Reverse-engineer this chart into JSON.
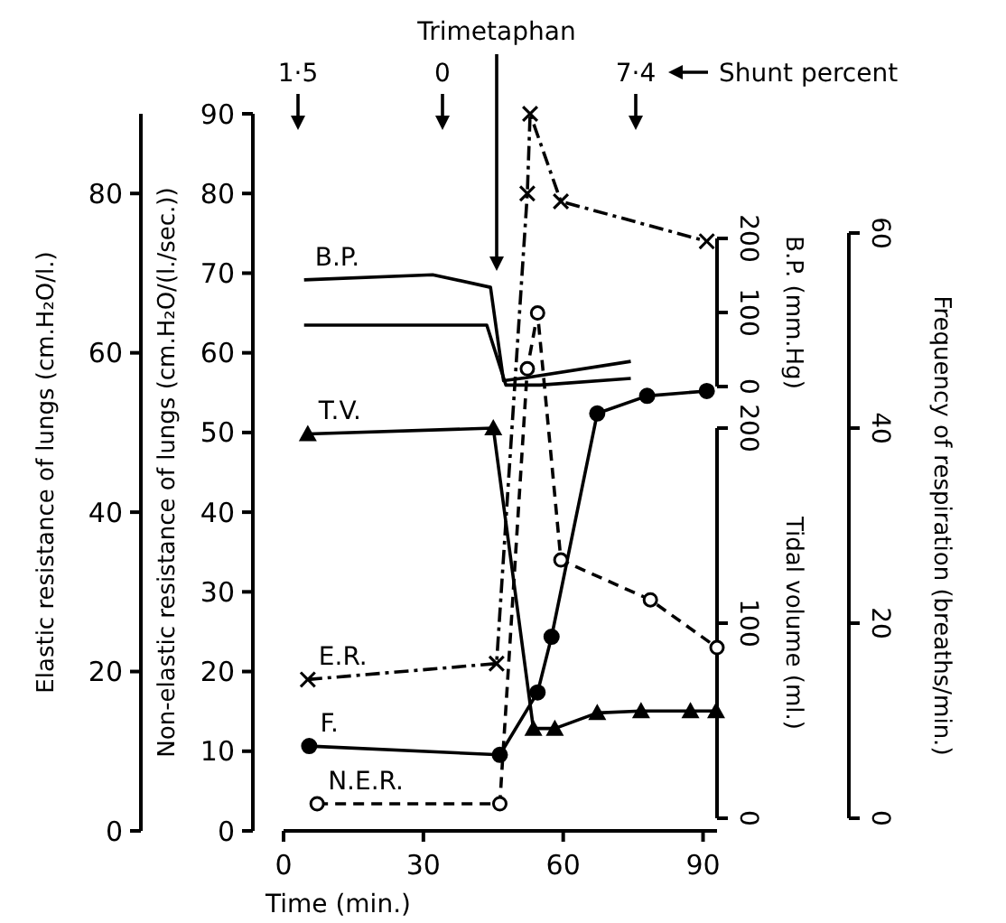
{
  "chart_data": [
    {
      "type": "line",
      "xlim": [
        0,
        93
      ],
      "tick_labels": "y",
      "ylabel": "Elastic resistance of lungs (cm.H₂O/l.)",
      "ylim": [
        0,
        90
      ],
      "yticks": [
        0,
        20,
        40,
        60,
        80
      ],
      "y2label": "Frequency of respiration (breaths/min.)",
      "y2lim": [
        0,
        60
      ],
      "y2ticks": [
        0,
        20,
        40,
        60
      ],
      "series": [
        {
          "name": "E.R.",
          "color": "#000000",
          "marker": "cross",
          "line_style": "dashdot",
          "x": [
            5.2,
            45.7,
            52.3,
            52.9,
            59.5,
            90.8
          ],
          "values": [
            19,
            21,
            80,
            90,
            79,
            74
          ]
        },
        {
          "name": "F.",
          "axis": "y2",
          "color": "#000000",
          "marker": "circle",
          "line_style": "solid",
          "x": [
            5.5,
            46.4,
            54.5,
            57.5,
            67.3,
            78,
            90.8
          ],
          "values": [
            7.4,
            6.5,
            12.9,
            18.6,
            41.5,
            43.3,
            43.8
          ]
        }
      ]
    },
    {
      "type": "line",
      "xlabel": "Time (min.)",
      "xlim": [
        0,
        93
      ],
      "xticks": [
        0,
        30,
        60,
        90
      ],
      "ylabel": "Non-elastic resistance of lungs (cm.H₂O/(l./sec.))",
      "ylim": [
        0,
        90
      ],
      "yticks": [
        0,
        10,
        20,
        30,
        40,
        50,
        60,
        70,
        80,
        90
      ],
      "y2label": "Tidal volume (ml.)",
      "y2lim": [
        0,
        200
      ],
      "y2ticks": [
        0,
        100,
        200
      ],
      "annotations": [
        "Trimetaphan",
        "1·5",
        "0",
        "7·4",
        "Shunt percent"
      ],
      "series": [
        {
          "name": "T.V.",
          "axis": "y2",
          "color": "#000000",
          "marker": "triangle",
          "line_style": "solid",
          "x": [
            5.2,
            45,
            53.6,
            58.2,
            67.3,
            76.7,
            87.3,
            92.8
          ],
          "values": [
            197,
            200,
            46,
            46,
            54,
            55,
            55,
            55
          ]
        },
        {
          "name": "N.E.R.",
          "color": "#000000",
          "marker": "circle-open",
          "line_style": "dashed",
          "x": [
            7.2,
            46.4,
            52.3,
            54.5,
            59.5,
            78.7,
            93
          ],
          "values": [
            3.4,
            3.4,
            58,
            65,
            34,
            29,
            23
          ]
        }
      ]
    },
    {
      "type": "line",
      "xlim": [
        0,
        93
      ],
      "tick_labels": "y",
      "y2label": "B.P. (mm.Hg)",
      "y2lim": [
        0,
        200
      ],
      "y2ticks": [
        0,
        100,
        200
      ],
      "series": [
        {
          "name": "B.P.",
          "axis": "y2",
          "color": "#000000",
          "marker": "none",
          "line_style": "solid",
          "x": [
            4.4,
            32,
            44.4,
            47.2,
            52,
            74.5
          ],
          "values": [
            144,
            151,
            134,
            8,
            12,
            34
          ]
        },
        {
          "axis": "y2",
          "color": "#000000",
          "marker": "none",
          "line_style": "solid",
          "x": [
            4.4,
            43.6,
            47.7,
            55,
            74.5
          ],
          "values": [
            83,
            83,
            2,
            2,
            11
          ]
        }
      ]
    }
  ]
}
